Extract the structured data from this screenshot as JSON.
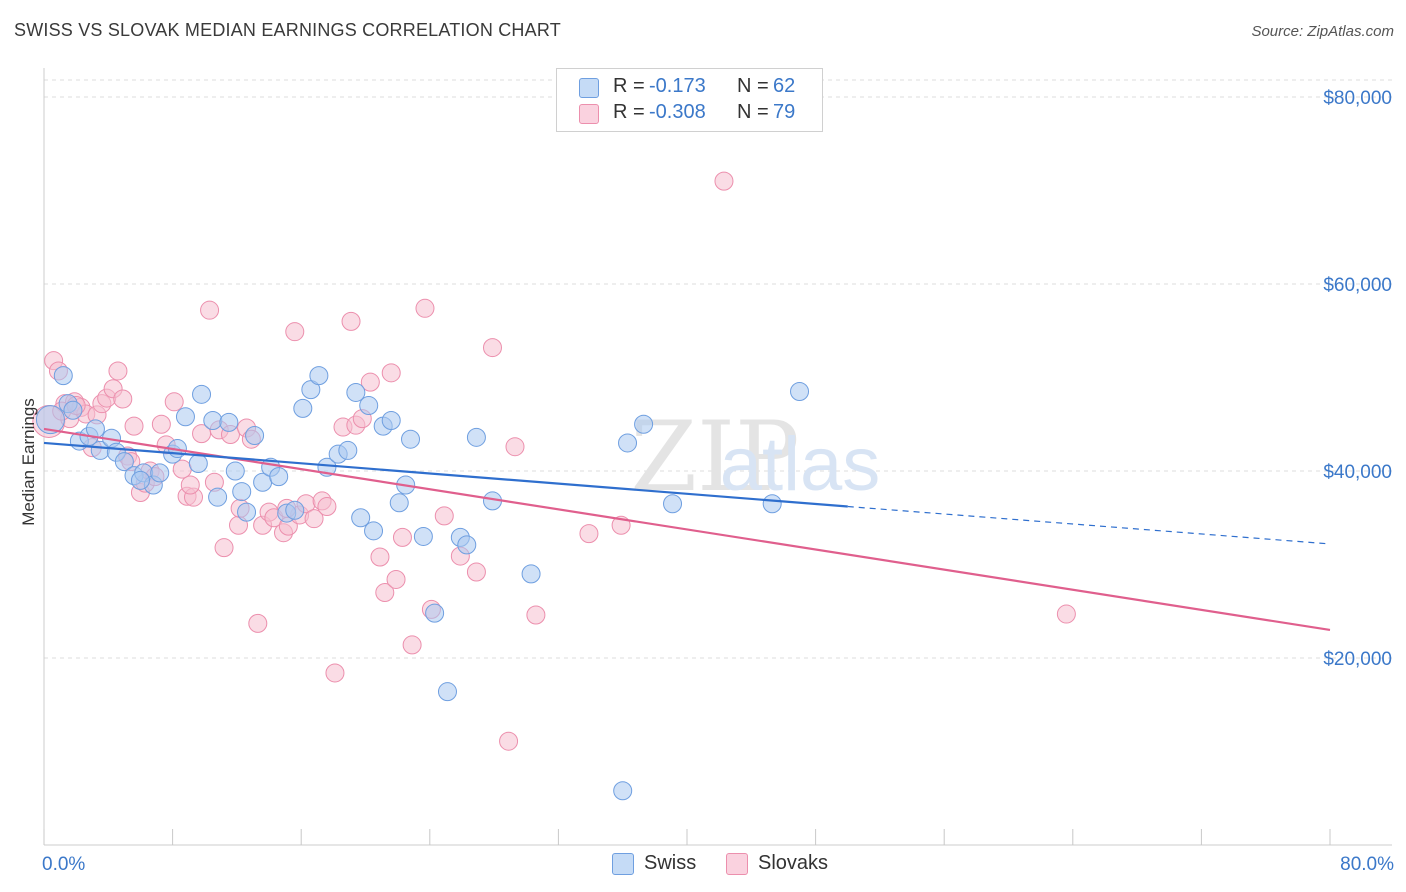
{
  "title": "SWISS VS SLOVAK MEDIAN EARNINGS CORRELATION CHART",
  "source": "Source: ZipAtlas.com",
  "watermark": {
    "zip": "ZIP",
    "atlas": "atlas"
  },
  "legend": {
    "swiss": {
      "r_label": "R =",
      "r_value": "-0.173",
      "n_label": "N =",
      "n_value": "62"
    },
    "slovaks": {
      "r_label": "R =",
      "r_value": "-0.308",
      "n_label": "N =",
      "n_value": "79"
    }
  },
  "bottom_legend": {
    "swiss": "Swiss",
    "slovaks": "Slovaks"
  },
  "colors": {
    "swiss_fill": "#a9c8f0",
    "swiss_stroke": "#6f9fe0",
    "swiss_line": "#2f6fce",
    "slovak_fill": "#f6bfd0",
    "slovak_stroke": "#ec8fad",
    "slovak_line": "#e05f8d",
    "tick_text": "#3b78c9",
    "grid": "#dddddd"
  },
  "chart_data": {
    "type": "scatter",
    "title": "SWISS VS SLOVAK MEDIAN EARNINGS CORRELATION CHART",
    "xlabel": "",
    "ylabel": "Median Earnings",
    "xlim": [
      0,
      80
    ],
    "ylim": [
      0,
      80000
    ],
    "x_tick_labels": [
      "0.0%",
      "80.0%"
    ],
    "y_ticks": [
      20000,
      40000,
      60000,
      80000
    ],
    "y_tick_labels": [
      "$20,000",
      "$40,000",
      "$60,000",
      "$80,000"
    ],
    "series": [
      {
        "name": "Swiss",
        "R": -0.173,
        "N": 62,
        "trend": {
          "x0": 0,
          "y0": 43000,
          "x1": 50,
          "y1": 36200,
          "dash_to_x": 80,
          "dash_to_y": 32200
        },
        "points": [
          [
            0.4,
            45500
          ],
          [
            1.2,
            50200
          ],
          [
            1.5,
            47200
          ],
          [
            1.8,
            46500
          ],
          [
            2.2,
            43200
          ],
          [
            2.8,
            43700
          ],
          [
            3.2,
            44500
          ],
          [
            3.5,
            42200
          ],
          [
            4.2,
            43500
          ],
          [
            4.5,
            42000
          ],
          [
            5,
            41000
          ],
          [
            5.6,
            39500
          ],
          [
            6.2,
            39800
          ],
          [
            6.8,
            38500
          ],
          [
            7.2,
            39800
          ],
          [
            8,
            41800
          ],
          [
            8.3,
            42400
          ],
          [
            8.8,
            45800
          ],
          [
            9.6,
            40800
          ],
          [
            9.8,
            48200
          ],
          [
            10.5,
            45400
          ],
          [
            10.8,
            37200
          ],
          [
            11.5,
            45200
          ],
          [
            11.9,
            40000
          ],
          [
            12.3,
            37800
          ],
          [
            12.6,
            35600
          ],
          [
            13.1,
            43800
          ],
          [
            13.6,
            38800
          ],
          [
            14.1,
            40400
          ],
          [
            14.6,
            39400
          ],
          [
            15.1,
            35500
          ],
          [
            15.6,
            35800
          ],
          [
            16.1,
            46700
          ],
          [
            16.6,
            48700
          ],
          [
            17.1,
            50200
          ],
          [
            17.6,
            40400
          ],
          [
            18.3,
            41800
          ],
          [
            18.9,
            42200
          ],
          [
            19.4,
            48400
          ],
          [
            19.7,
            35000
          ],
          [
            20.2,
            47000
          ],
          [
            20.5,
            33600
          ],
          [
            21.1,
            44800
          ],
          [
            21.6,
            45400
          ],
          [
            22.1,
            36600
          ],
          [
            22.5,
            38500
          ],
          [
            22.8,
            43400
          ],
          [
            23.6,
            33000
          ],
          [
            24.3,
            24800
          ],
          [
            25.1,
            16400
          ],
          [
            25.9,
            32900
          ],
          [
            26.3,
            32100
          ],
          [
            26.9,
            43600
          ],
          [
            27.9,
            36800
          ],
          [
            30.3,
            29000
          ],
          [
            36.3,
            43000
          ],
          [
            37.3,
            45000
          ],
          [
            39.1,
            36500
          ],
          [
            36.0,
            5800
          ],
          [
            45.3,
            36500
          ],
          [
            47.0,
            48500
          ],
          [
            6.0,
            39000
          ]
        ]
      },
      {
        "name": "Slovaks",
        "R": -0.308,
        "N": 79,
        "trend": {
          "x0": 0,
          "y0": 44500,
          "x1": 80,
          "y1": 23000
        },
        "points": [
          [
            0.3,
            45300
          ],
          [
            0.6,
            51800
          ],
          [
            0.9,
            50700
          ],
          [
            1.3,
            47200
          ],
          [
            1.6,
            45600
          ],
          [
            1.9,
            47400
          ],
          [
            2.3,
            46800
          ],
          [
            2.6,
            46100
          ],
          [
            3.0,
            42500
          ],
          [
            3.3,
            46000
          ],
          [
            3.6,
            47200
          ],
          [
            3.9,
            47800
          ],
          [
            4.3,
            48800
          ],
          [
            4.6,
            50700
          ],
          [
            4.9,
            47700
          ],
          [
            5.2,
            41600
          ],
          [
            5.6,
            44800
          ],
          [
            6.0,
            37700
          ],
          [
            6.3,
            38700
          ],
          [
            6.6,
            40000
          ],
          [
            6.9,
            39400
          ],
          [
            7.3,
            45000
          ],
          [
            7.6,
            42800
          ],
          [
            8.1,
            47400
          ],
          [
            8.6,
            40200
          ],
          [
            8.9,
            37300
          ],
          [
            9.3,
            37200
          ],
          [
            9.8,
            44000
          ],
          [
            10.3,
            57200
          ],
          [
            10.6,
            38800
          ],
          [
            10.9,
            44400
          ],
          [
            11.2,
            31800
          ],
          [
            11.6,
            43900
          ],
          [
            12.1,
            34200
          ],
          [
            12.6,
            44600
          ],
          [
            12.9,
            43400
          ],
          [
            13.3,
            23700
          ],
          [
            13.6,
            34200
          ],
          [
            14.0,
            35600
          ],
          [
            14.3,
            35000
          ],
          [
            14.9,
            33400
          ],
          [
            15.2,
            34100
          ],
          [
            15.6,
            54900
          ],
          [
            15.9,
            35300
          ],
          [
            16.3,
            36500
          ],
          [
            16.8,
            34900
          ],
          [
            17.3,
            36800
          ],
          [
            17.6,
            36200
          ],
          [
            18.1,
            18400
          ],
          [
            18.6,
            44700
          ],
          [
            19.1,
            56000
          ],
          [
            19.4,
            44900
          ],
          [
            19.8,
            45600
          ],
          [
            20.3,
            49500
          ],
          [
            20.9,
            30800
          ],
          [
            21.2,
            27000
          ],
          [
            21.6,
            50500
          ],
          [
            21.9,
            28400
          ],
          [
            22.3,
            32900
          ],
          [
            22.9,
            21400
          ],
          [
            23.7,
            57400
          ],
          [
            24.1,
            25200
          ],
          [
            24.9,
            35200
          ],
          [
            25.9,
            30900
          ],
          [
            26.9,
            29200
          ],
          [
            27.9,
            53200
          ],
          [
            28.9,
            11100
          ],
          [
            29.3,
            42600
          ],
          [
            30.6,
            24600
          ],
          [
            33.9,
            33300
          ],
          [
            35.9,
            34200
          ],
          [
            42.3,
            71000
          ],
          [
            63.6,
            24700
          ],
          [
            1.1,
            46400
          ],
          [
            2.0,
            47000
          ],
          [
            5.4,
            41000
          ],
          [
            9.1,
            38500
          ],
          [
            12.2,
            36000
          ],
          [
            15.1,
            36000
          ]
        ]
      }
    ]
  }
}
